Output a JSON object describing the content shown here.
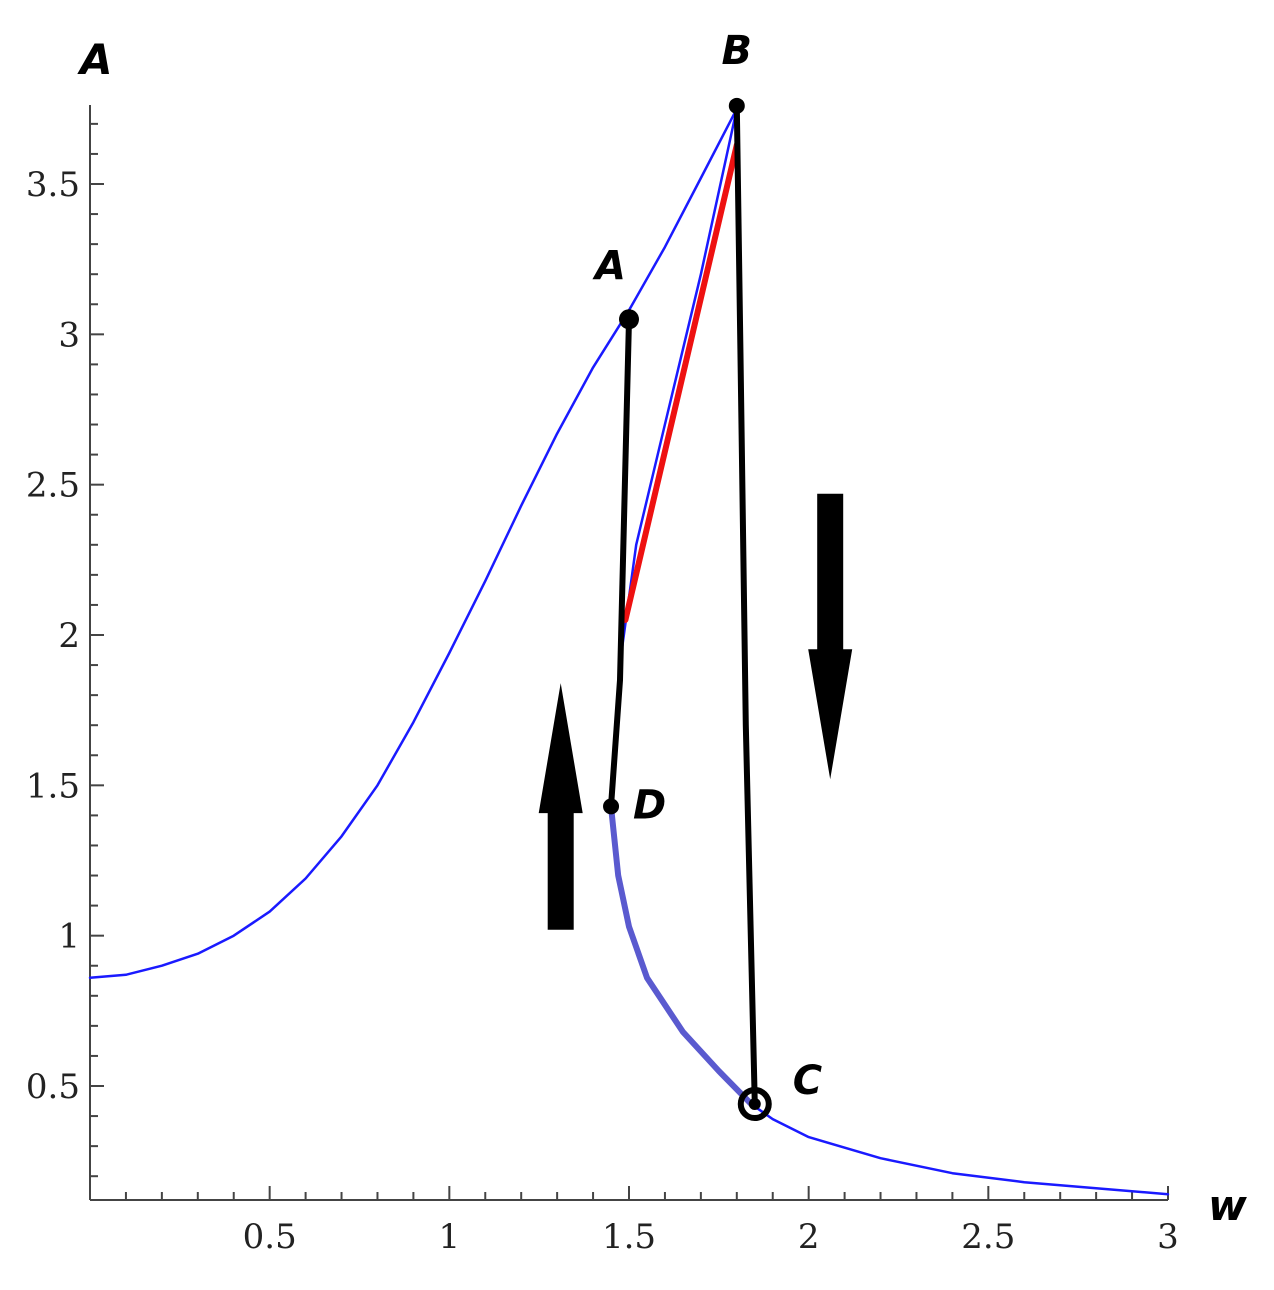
{
  "chart_data": {
    "type": "line",
    "xlabel": "w",
    "ylabel": "A",
    "xlim": [
      0,
      3
    ],
    "ylim": [
      0.15,
      3.78
    ],
    "x_ticks": [
      {
        "value": 0.5,
        "label": "0.5"
      },
      {
        "value": 1,
        "label": "1"
      },
      {
        "value": 1.5,
        "label": "1.5"
      },
      {
        "value": 2,
        "label": "2"
      },
      {
        "value": 2.5,
        "label": "2.5"
      },
      {
        "value": 3,
        "label": "3"
      }
    ],
    "y_ticks": [
      {
        "value": 0.5,
        "label": "0.5"
      },
      {
        "value": 1,
        "label": "1"
      },
      {
        "value": 1.5,
        "label": "1.5"
      },
      {
        "value": 2,
        "label": "2"
      },
      {
        "value": 2.5,
        "label": "2.5"
      },
      {
        "value": 3,
        "label": "3"
      },
      {
        "value": 3.5,
        "label": "3.5"
      }
    ],
    "grid": false,
    "series": [
      {
        "role": "upper-branch",
        "color": "#1a1aff",
        "width": 2.5,
        "points": [
          [
            0,
            0.86
          ],
          [
            0.1,
            0.87
          ],
          [
            0.2,
            0.9
          ],
          [
            0.3,
            0.94
          ],
          [
            0.4,
            1.0
          ],
          [
            0.5,
            1.08
          ],
          [
            0.6,
            1.19
          ],
          [
            0.7,
            1.33
          ],
          [
            0.8,
            1.5
          ],
          [
            0.9,
            1.71
          ],
          [
            1.0,
            1.94
          ],
          [
            1.1,
            2.18
          ],
          [
            1.2,
            2.43
          ],
          [
            1.3,
            2.67
          ],
          [
            1.4,
            2.89
          ],
          [
            1.5,
            3.08
          ],
          [
            1.6,
            3.29
          ],
          [
            1.7,
            3.52
          ],
          [
            1.8,
            3.75
          ]
        ]
      },
      {
        "role": "middle-branch",
        "color": "#1a1aff",
        "width": 2.5,
        "points": [
          [
            1.8,
            3.75
          ],
          [
            1.7,
            3.2
          ],
          [
            1.6,
            2.7
          ],
          [
            1.52,
            2.3
          ],
          [
            1.48,
            1.95
          ],
          [
            1.46,
            1.62
          ],
          [
            1.45,
            1.43
          ]
        ]
      },
      {
        "role": "lower-branch",
        "color": "#1a1aff",
        "width": 2.5,
        "points": [
          [
            1.84,
            0.44
          ],
          [
            1.9,
            0.39
          ],
          [
            2.0,
            0.33
          ],
          [
            2.2,
            0.26
          ],
          [
            2.4,
            0.21
          ],
          [
            2.6,
            0.18
          ],
          [
            2.8,
            0.16
          ],
          [
            3.0,
            0.14
          ]
        ]
      },
      {
        "role": "lower-branch-highlight",
        "color": "#5a5acf",
        "width": 6,
        "points": [
          [
            1.45,
            1.43
          ],
          [
            1.47,
            1.2
          ],
          [
            1.5,
            1.03
          ],
          [
            1.55,
            0.86
          ],
          [
            1.65,
            0.68
          ],
          [
            1.75,
            0.55
          ],
          [
            1.84,
            0.44
          ]
        ]
      },
      {
        "role": "red-segment",
        "color": "#ee1111",
        "width": 6,
        "points": [
          [
            1.49,
            2.05
          ],
          [
            1.8,
            3.63
          ]
        ]
      },
      {
        "role": "jump-up-D-to-A",
        "color": "#000000",
        "width": 6,
        "points": [
          [
            1.45,
            1.43
          ],
          [
            1.475,
            1.85
          ],
          [
            1.5,
            3.05
          ]
        ]
      },
      {
        "role": "jump-down-B-to-C",
        "color": "#000000",
        "width": 6,
        "points": [
          [
            1.8,
            3.76
          ],
          [
            1.81,
            2.95
          ],
          [
            1.825,
            1.7
          ],
          [
            1.85,
            0.44
          ]
        ]
      }
    ],
    "points": [
      {
        "label": "A",
        "x": 1.5,
        "y": 3.05
      },
      {
        "label": "B",
        "x": 1.8,
        "y": 3.76
      },
      {
        "label": "C",
        "x": 1.85,
        "y": 0.44
      },
      {
        "label": "D",
        "x": 1.45,
        "y": 1.43
      }
    ],
    "arrows": [
      {
        "direction": "up",
        "x": 1.31,
        "y_from": 1.02,
        "y_to": 1.84
      },
      {
        "direction": "down",
        "x": 2.06,
        "y_from": 2.47,
        "y_to": 1.52
      }
    ]
  }
}
